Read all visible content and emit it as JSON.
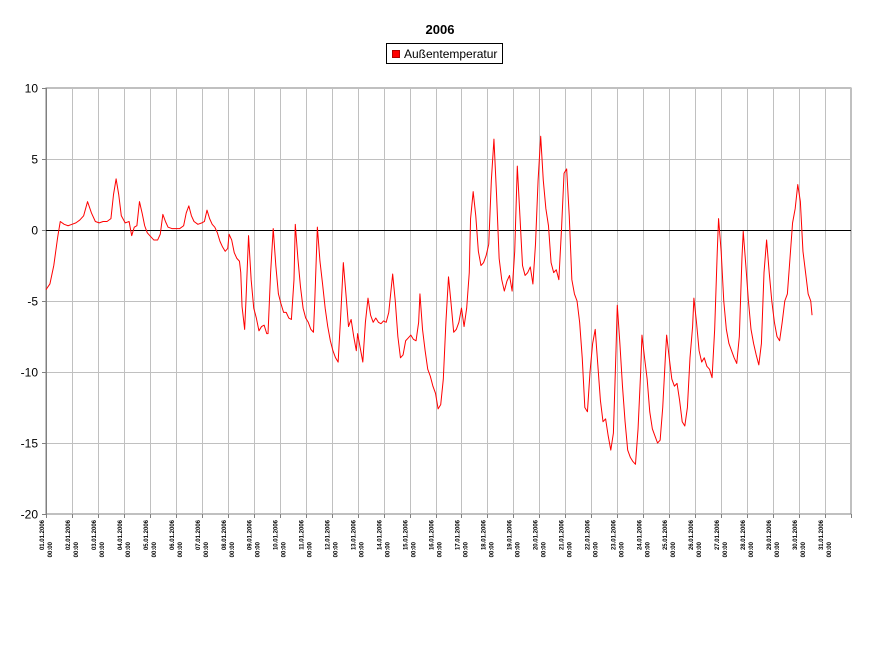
{
  "chart_data": {
    "type": "line",
    "title": "2006",
    "xlabel": "",
    "ylabel": "",
    "ylim": [
      -20,
      10
    ],
    "yticks": [
      10,
      5,
      0,
      -5,
      -10,
      -15,
      -20
    ],
    "grid": true,
    "legend_position": "top-center",
    "colors": {
      "series": "#ff0000",
      "grid": "#c0c0c0",
      "zero_line": "#000000"
    },
    "x_ticks": [
      [
        "01.01.2006",
        "00:00"
      ],
      [
        "02.01.2006",
        "00:00"
      ],
      [
        "03.01.2006",
        "00:00"
      ],
      [
        "04.01.2006",
        "00:00"
      ],
      [
        "05.01.2006",
        "00:00"
      ],
      [
        "06.01.2006",
        "00:00"
      ],
      [
        "07.01.2006",
        "00:00"
      ],
      [
        "08.01.2006",
        "00:00"
      ],
      [
        "09.01.2006",
        "00:00"
      ],
      [
        "10.01.2006",
        "00:00"
      ],
      [
        "11.01.2006",
        "00:00"
      ],
      [
        "12.01.2006",
        "00:00"
      ],
      [
        "13.01.2006",
        "00:00"
      ],
      [
        "14.01.2006",
        "00:00"
      ],
      [
        "15.01.2006",
        "00:00"
      ],
      [
        "16.01.2006",
        "00:00"
      ],
      [
        "17.01.2006",
        "00:00"
      ],
      [
        "18.01.2006",
        "00:00"
      ],
      [
        "19.01.2006",
        "00:00"
      ],
      [
        "20.01.2006",
        "00:00"
      ],
      [
        "21.01.2006",
        "00:00"
      ],
      [
        "22.01.2006",
        "00:00"
      ],
      [
        "23.01.2006",
        "00:00"
      ],
      [
        "24.01.2006",
        "00:00"
      ],
      [
        "25.01.2006",
        "00:00"
      ],
      [
        "26.01.2006",
        "00:00"
      ],
      [
        "27.01.2006",
        "00:00"
      ],
      [
        "28.01.2006",
        "00:00"
      ],
      [
        "29.01.2006",
        "00:00"
      ],
      [
        "30.01.2006",
        "00:00"
      ],
      [
        "31.01.2006",
        "00:00"
      ]
    ],
    "series": [
      {
        "name": "Außentemperatur",
        "x_unit": "days",
        "points": [
          [
            0.0,
            -4.2
          ],
          [
            0.15,
            -3.8
          ],
          [
            0.3,
            -2.5
          ],
          [
            0.45,
            -0.5
          ],
          [
            0.55,
            0.6
          ],
          [
            0.7,
            0.4
          ],
          [
            0.85,
            0.3
          ],
          [
            1.0,
            0.4
          ],
          [
            1.15,
            0.5
          ],
          [
            1.3,
            0.7
          ],
          [
            1.45,
            1.0
          ],
          [
            1.6,
            2.0
          ],
          [
            1.75,
            1.2
          ],
          [
            1.9,
            0.6
          ],
          [
            2.05,
            0.5
          ],
          [
            2.2,
            0.6
          ],
          [
            2.35,
            0.6
          ],
          [
            2.5,
            0.8
          ],
          [
            2.6,
            2.5
          ],
          [
            2.7,
            3.6
          ],
          [
            2.8,
            2.5
          ],
          [
            2.9,
            1.0
          ],
          [
            3.05,
            0.5
          ],
          [
            3.2,
            0.6
          ],
          [
            3.3,
            -0.4
          ],
          [
            3.4,
            0.2
          ],
          [
            3.5,
            0.3
          ],
          [
            3.6,
            2.0
          ],
          [
            3.7,
            1.2
          ],
          [
            3.8,
            0.3
          ],
          [
            3.9,
            -0.2
          ],
          [
            4.0,
            -0.4
          ],
          [
            4.15,
            -0.7
          ],
          [
            4.3,
            -0.7
          ],
          [
            4.4,
            -0.3
          ],
          [
            4.5,
            1.1
          ],
          [
            4.6,
            0.6
          ],
          [
            4.7,
            0.2
          ],
          [
            4.85,
            0.1
          ],
          [
            5.0,
            0.1
          ],
          [
            5.15,
            0.1
          ],
          [
            5.3,
            0.3
          ],
          [
            5.4,
            1.2
          ],
          [
            5.5,
            1.7
          ],
          [
            5.6,
            1.0
          ],
          [
            5.7,
            0.6
          ],
          [
            5.85,
            0.4
          ],
          [
            6.0,
            0.5
          ],
          [
            6.1,
            0.6
          ],
          [
            6.2,
            1.4
          ],
          [
            6.3,
            0.8
          ],
          [
            6.4,
            0.4
          ],
          [
            6.5,
            0.2
          ],
          [
            6.6,
            -0.2
          ],
          [
            6.7,
            -0.8
          ],
          [
            6.8,
            -1.2
          ],
          [
            6.9,
            -1.5
          ],
          [
            7.0,
            -1.3
          ],
          [
            7.05,
            -0.3
          ],
          [
            7.15,
            -0.7
          ],
          [
            7.25,
            -1.6
          ],
          [
            7.35,
            -2.0
          ],
          [
            7.45,
            -2.2
          ],
          [
            7.5,
            -3.0
          ],
          [
            7.55,
            -5.4
          ],
          [
            7.65,
            -7.0
          ],
          [
            7.7,
            -5.0
          ],
          [
            7.8,
            -0.4
          ],
          [
            7.9,
            -3.5
          ],
          [
            8.0,
            -5.5
          ],
          [
            8.1,
            -6.2
          ],
          [
            8.2,
            -7.1
          ],
          [
            8.3,
            -6.8
          ],
          [
            8.4,
            -6.7
          ],
          [
            8.5,
            -7.3
          ],
          [
            8.55,
            -7.3
          ],
          [
            8.65,
            -3.0
          ],
          [
            8.75,
            0.1
          ],
          [
            8.85,
            -2.5
          ],
          [
            8.95,
            -4.5
          ],
          [
            9.05,
            -5.2
          ],
          [
            9.15,
            -5.8
          ],
          [
            9.25,
            -5.8
          ],
          [
            9.35,
            -6.2
          ],
          [
            9.45,
            -6.3
          ],
          [
            9.55,
            -3.5
          ],
          [
            9.6,
            0.4
          ],
          [
            9.7,
            -2.0
          ],
          [
            9.8,
            -4.0
          ],
          [
            9.9,
            -5.5
          ],
          [
            10.0,
            -6.2
          ],
          [
            10.1,
            -6.5
          ],
          [
            10.2,
            -7.0
          ],
          [
            10.3,
            -7.2
          ],
          [
            10.35,
            -5.0
          ],
          [
            10.45,
            0.2
          ],
          [
            10.55,
            -2.2
          ],
          [
            10.65,
            -3.8
          ],
          [
            10.75,
            -5.5
          ],
          [
            10.85,
            -6.8
          ],
          [
            10.95,
            -7.8
          ],
          [
            11.05,
            -8.5
          ],
          [
            11.15,
            -9.0
          ],
          [
            11.25,
            -9.3
          ],
          [
            11.35,
            -6.0
          ],
          [
            11.45,
            -2.3
          ],
          [
            11.55,
            -4.5
          ],
          [
            11.65,
            -6.8
          ],
          [
            11.75,
            -6.3
          ],
          [
            11.85,
            -7.5
          ],
          [
            11.95,
            -8.5
          ],
          [
            12.0,
            -7.3
          ],
          [
            12.1,
            -8.3
          ],
          [
            12.2,
            -9.3
          ],
          [
            12.3,
            -6.5
          ],
          [
            12.4,
            -4.8
          ],
          [
            12.5,
            -6.0
          ],
          [
            12.6,
            -6.5
          ],
          [
            12.7,
            -6.2
          ],
          [
            12.8,
            -6.5
          ],
          [
            12.9,
            -6.6
          ],
          [
            13.0,
            -6.4
          ],
          [
            13.1,
            -6.5
          ],
          [
            13.2,
            -5.8
          ],
          [
            13.3,
            -4.0
          ],
          [
            13.35,
            -3.1
          ],
          [
            13.45,
            -5.0
          ],
          [
            13.55,
            -7.5
          ],
          [
            13.65,
            -9.0
          ],
          [
            13.75,
            -8.8
          ],
          [
            13.85,
            -7.8
          ],
          [
            13.95,
            -7.6
          ],
          [
            14.05,
            -7.4
          ],
          [
            14.15,
            -7.7
          ],
          [
            14.25,
            -7.8
          ],
          [
            14.35,
            -6.5
          ],
          [
            14.4,
            -4.5
          ],
          [
            14.5,
            -7.0
          ],
          [
            14.6,
            -8.5
          ],
          [
            14.7,
            -9.8
          ],
          [
            14.8,
            -10.3
          ],
          [
            14.9,
            -11.0
          ],
          [
            15.0,
            -11.5
          ],
          [
            15.1,
            -12.6
          ],
          [
            15.2,
            -12.3
          ],
          [
            15.3,
            -10.5
          ],
          [
            15.4,
            -6.5
          ],
          [
            15.5,
            -3.3
          ],
          [
            15.6,
            -5.2
          ],
          [
            15.7,
            -7.2
          ],
          [
            15.8,
            -7.0
          ],
          [
            15.9,
            -6.5
          ],
          [
            16.0,
            -5.5
          ],
          [
            16.1,
            -6.8
          ],
          [
            16.2,
            -5.5
          ],
          [
            16.3,
            -3.0
          ],
          [
            16.35,
            0.8
          ],
          [
            16.45,
            2.7
          ],
          [
            16.55,
            1.0
          ],
          [
            16.65,
            -1.5
          ],
          [
            16.75,
            -2.5
          ],
          [
            16.85,
            -2.3
          ],
          [
            16.95,
            -1.8
          ],
          [
            17.05,
            -1.0
          ],
          [
            17.15,
            3.5
          ],
          [
            17.25,
            6.4
          ],
          [
            17.35,
            2.5
          ],
          [
            17.45,
            -2.0
          ],
          [
            17.55,
            -3.5
          ],
          [
            17.65,
            -4.3
          ],
          [
            17.75,
            -3.6
          ],
          [
            17.85,
            -3.2
          ],
          [
            17.95,
            -4.3
          ],
          [
            18.05,
            -1.5
          ],
          [
            18.15,
            4.5
          ],
          [
            18.25,
            1.0
          ],
          [
            18.35,
            -2.5
          ],
          [
            18.45,
            -3.2
          ],
          [
            18.55,
            -3.0
          ],
          [
            18.65,
            -2.6
          ],
          [
            18.75,
            -3.8
          ],
          [
            18.85,
            -1.0
          ],
          [
            18.95,
            3.5
          ],
          [
            19.05,
            6.6
          ],
          [
            19.15,
            3.5
          ],
          [
            19.25,
            1.5
          ],
          [
            19.35,
            0.3
          ],
          [
            19.45,
            -2.3
          ],
          [
            19.55,
            -3.0
          ],
          [
            19.65,
            -2.8
          ],
          [
            19.75,
            -3.5
          ],
          [
            19.85,
            0.0
          ],
          [
            19.95,
            4.0
          ],
          [
            20.05,
            4.3
          ],
          [
            20.15,
            1.0
          ],
          [
            20.25,
            -3.5
          ],
          [
            20.35,
            -4.5
          ],
          [
            20.45,
            -5.0
          ],
          [
            20.55,
            -6.5
          ],
          [
            20.65,
            -9.0
          ],
          [
            20.75,
            -12.5
          ],
          [
            20.85,
            -12.8
          ],
          [
            20.95,
            -10.0
          ],
          [
            21.05,
            -8.0
          ],
          [
            21.15,
            -7.0
          ],
          [
            21.25,
            -9.5
          ],
          [
            21.35,
            -12.0
          ],
          [
            21.45,
            -13.5
          ],
          [
            21.55,
            -13.3
          ],
          [
            21.65,
            -14.5
          ],
          [
            21.75,
            -15.5
          ],
          [
            21.85,
            -14.3
          ],
          [
            21.95,
            -8.5
          ],
          [
            22.0,
            -5.3
          ],
          [
            22.1,
            -8.0
          ],
          [
            22.2,
            -11.0
          ],
          [
            22.3,
            -13.5
          ],
          [
            22.4,
            -15.5
          ],
          [
            22.5,
            -16.0
          ],
          [
            22.6,
            -16.3
          ],
          [
            22.7,
            -16.5
          ],
          [
            22.8,
            -14.0
          ],
          [
            22.9,
            -10.0
          ],
          [
            22.95,
            -7.4
          ],
          [
            23.05,
            -9.0
          ],
          [
            23.15,
            -10.5
          ],
          [
            23.25,
            -12.8
          ],
          [
            23.35,
            -14.0
          ],
          [
            23.45,
            -14.5
          ],
          [
            23.55,
            -15.0
          ],
          [
            23.65,
            -14.8
          ],
          [
            23.75,
            -12.5
          ],
          [
            23.85,
            -9.0
          ],
          [
            23.9,
            -7.4
          ],
          [
            24.0,
            -9.0
          ],
          [
            24.1,
            -10.5
          ],
          [
            24.2,
            -11.0
          ],
          [
            24.3,
            -10.8
          ],
          [
            24.4,
            -12.0
          ],
          [
            24.5,
            -13.5
          ],
          [
            24.6,
            -13.8
          ],
          [
            24.7,
            -12.5
          ],
          [
            24.8,
            -9.0
          ],
          [
            24.9,
            -6.8
          ],
          [
            24.95,
            -4.8
          ],
          [
            25.05,
            -6.5
          ],
          [
            25.15,
            -8.5
          ],
          [
            25.25,
            -9.3
          ],
          [
            25.35,
            -9.0
          ],
          [
            25.45,
            -9.6
          ],
          [
            25.55,
            -9.8
          ],
          [
            25.65,
            -10.4
          ],
          [
            25.75,
            -7.0
          ],
          [
            25.85,
            -1.5
          ],
          [
            25.9,
            0.8
          ],
          [
            26.0,
            -1.5
          ],
          [
            26.1,
            -5.0
          ],
          [
            26.2,
            -7.0
          ],
          [
            26.3,
            -8.0
          ],
          [
            26.4,
            -8.5
          ],
          [
            26.5,
            -9.0
          ],
          [
            26.6,
            -9.4
          ],
          [
            26.7,
            -7.5
          ],
          [
            26.8,
            -2.0
          ],
          [
            26.85,
            -0.1
          ],
          [
            26.95,
            -2.5
          ],
          [
            27.05,
            -5.0
          ],
          [
            27.15,
            -7.0
          ],
          [
            27.25,
            -8.0
          ],
          [
            27.35,
            -8.8
          ],
          [
            27.45,
            -9.5
          ],
          [
            27.55,
            -8.0
          ],
          [
            27.65,
            -3.0
          ],
          [
            27.75,
            -0.7
          ],
          [
            27.85,
            -3.0
          ],
          [
            27.95,
            -5.0
          ],
          [
            28.05,
            -6.5
          ],
          [
            28.15,
            -7.5
          ],
          [
            28.25,
            -7.8
          ],
          [
            28.35,
            -6.5
          ],
          [
            28.45,
            -5.0
          ],
          [
            28.55,
            -4.5
          ],
          [
            28.65,
            -2.0
          ],
          [
            28.75,
            0.5
          ],
          [
            28.85,
            1.5
          ],
          [
            28.95,
            3.2
          ],
          [
            29.05,
            2.0
          ],
          [
            29.15,
            -1.5
          ],
          [
            29.25,
            -3.0
          ],
          [
            29.35,
            -4.5
          ],
          [
            29.45,
            -5.0
          ],
          [
            29.5,
            -6.0
          ]
        ]
      }
    ]
  }
}
